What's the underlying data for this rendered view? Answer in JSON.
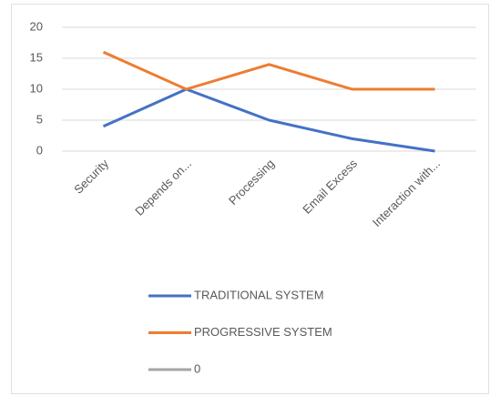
{
  "chart_data": {
    "type": "line",
    "categories": [
      "Security",
      "Depends on...",
      "Processing",
      "Email Excess",
      "Interaction with..."
    ],
    "series": [
      {
        "name": "TRADITIONAL SYSTEM",
        "color": "#4472c4",
        "values": [
          4,
          10,
          5,
          2,
          0
        ]
      },
      {
        "name": "PROGRESSIVE SYSTEM",
        "color": "#ed7d31",
        "values": [
          16,
          10,
          14,
          10,
          10
        ]
      },
      {
        "name": "0",
        "color": "#a5a5a5",
        "values": [
          null,
          null,
          null,
          null,
          null
        ]
      }
    ],
    "ylim": [
      0,
      20
    ],
    "yticks": [
      0,
      5,
      10,
      15,
      20
    ],
    "grid": true,
    "legend": "bottom"
  }
}
